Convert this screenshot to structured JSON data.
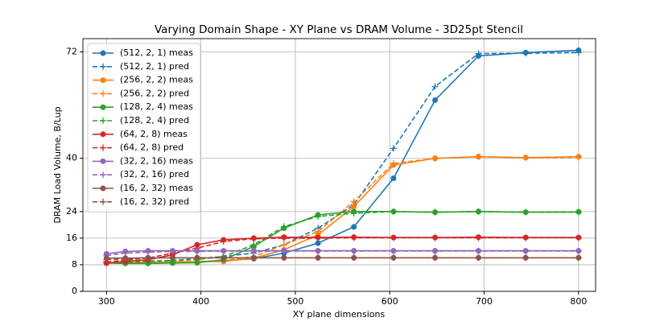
{
  "chart_data": {
    "type": "line",
    "title": "Varying Domain Shape - XY Plane vs DRAM Volume - 3D25pt Stencil",
    "x_label": "XY plane dimensions",
    "y_label": "DRAM Load Volume, B/Lup",
    "x": [
      300,
      320,
      344,
      370,
      396,
      424,
      456,
      488,
      524,
      562,
      604,
      648,
      694,
      744,
      800
    ],
    "xlim": [
      275,
      818
    ],
    "xticks": [
      300,
      400,
      500,
      600,
      700,
      800
    ],
    "ylim": [
      0,
      76
    ],
    "yticks": [
      0,
      8,
      16,
      24,
      40,
      72
    ],
    "grid": true,
    "legend": "upper left",
    "series": [
      {
        "name": "(512, 2, 1) meas",
        "color": "#1f77b4",
        "linestyle": "solid",
        "marker": "o",
        "values": [
          8.5,
          8.6,
          8.7,
          8.8,
          8.9,
          9.2,
          9.8,
          11.5,
          14.5,
          19.4,
          34,
          57.5,
          70.8,
          71.8,
          72.5
        ]
      },
      {
        "name": "(512, 2, 1) pred",
        "color": "#1f77b4",
        "linestyle": "dashed",
        "marker": "+",
        "values": [
          8.8,
          8.9,
          9.1,
          9.3,
          9.8,
          10.5,
          11.5,
          14,
          19,
          26,
          43,
          61.6,
          71.5,
          71.6,
          71.8
        ]
      },
      {
        "name": "(256, 2, 2) meas",
        "color": "#ff7f0e",
        "linestyle": "solid",
        "marker": "o",
        "values": [
          8.5,
          8.6,
          8.7,
          8.8,
          8.9,
          9,
          10,
          12.5,
          17,
          25.5,
          38,
          40,
          40.5,
          40.2,
          40.5
        ]
      },
      {
        "name": "(256, 2, 2) pred",
        "color": "#ff7f0e",
        "linestyle": "dashed",
        "marker": "+",
        "values": [
          8.6,
          8.7,
          8.8,
          8.9,
          9,
          9.2,
          10.5,
          14,
          18,
          27,
          38.5,
          40,
          40.5,
          40.2,
          40.3
        ]
      },
      {
        "name": "(128, 2, 4) meas",
        "color": "#2ca02c",
        "linestyle": "solid",
        "marker": "o",
        "values": [
          8.5,
          8.4,
          8.4,
          8.5,
          8.6,
          9.5,
          13.5,
          19,
          23,
          24,
          24,
          23.8,
          24,
          23.8,
          23.9
        ]
      },
      {
        "name": "(128, 2, 4) pred",
        "color": "#2ca02c",
        "linestyle": "dashed",
        "marker": "+",
        "values": [
          8.7,
          8.8,
          9,
          9.2,
          9.6,
          10.5,
          14,
          19.5,
          22.5,
          23.5,
          24,
          23.8,
          24,
          23.8,
          23.8
        ]
      },
      {
        "name": "(64, 2, 8) meas",
        "color": "#d62728",
        "linestyle": "solid",
        "marker": "o",
        "values": [
          8.5,
          9,
          9.5,
          11,
          14,
          15.5,
          16,
          16.3,
          16.2,
          16.3,
          16.2,
          16.2,
          16.3,
          16.2,
          16.2
        ]
      },
      {
        "name": "(64, 2, 8) pred",
        "color": "#d62728",
        "linestyle": "dashed",
        "marker": "+",
        "values": [
          8.8,
          9.4,
          10,
          11.5,
          13,
          15,
          15.8,
          16,
          16,
          16.1,
          16.1,
          16.1,
          16.1,
          16.1,
          16.1
        ]
      },
      {
        "name": "(32, 2, 16) meas",
        "color": "#9467bd",
        "linestyle": "solid",
        "marker": "o",
        "values": [
          11.3,
          12,
          12.2,
          12.2,
          12.2,
          12.2,
          12.2,
          12.2,
          12.2,
          12.2,
          12.2,
          12.2,
          12.2,
          12.2,
          12.2
        ]
      },
      {
        "name": "(32, 2, 16) pred",
        "color": "#9467bd",
        "linestyle": "dashed",
        "marker": "+",
        "values": [
          10.8,
          11.5,
          11.8,
          12,
          12,
          12.1,
          12.1,
          12.1,
          12.1,
          12.1,
          12.1,
          12.1,
          12.1,
          12.1,
          12.1
        ]
      },
      {
        "name": "(16, 2, 32) meas",
        "color": "#8c564b",
        "linestyle": "solid",
        "marker": "o",
        "values": [
          10,
          10,
          10.1,
          10.1,
          10.1,
          10.1,
          10.1,
          10.1,
          10.1,
          10.1,
          10.1,
          10.1,
          10.1,
          10.1,
          10.1
        ]
      },
      {
        "name": "(16, 2, 32) pred",
        "color": "#8c564b",
        "linestyle": "dashed",
        "marker": "+",
        "values": [
          9.5,
          9.8,
          10,
          10.1,
          10.1,
          10.1,
          10.1,
          10.1,
          10.1,
          10.1,
          10.1,
          10.1,
          10.1,
          10.1,
          10.1
        ]
      }
    ]
  }
}
